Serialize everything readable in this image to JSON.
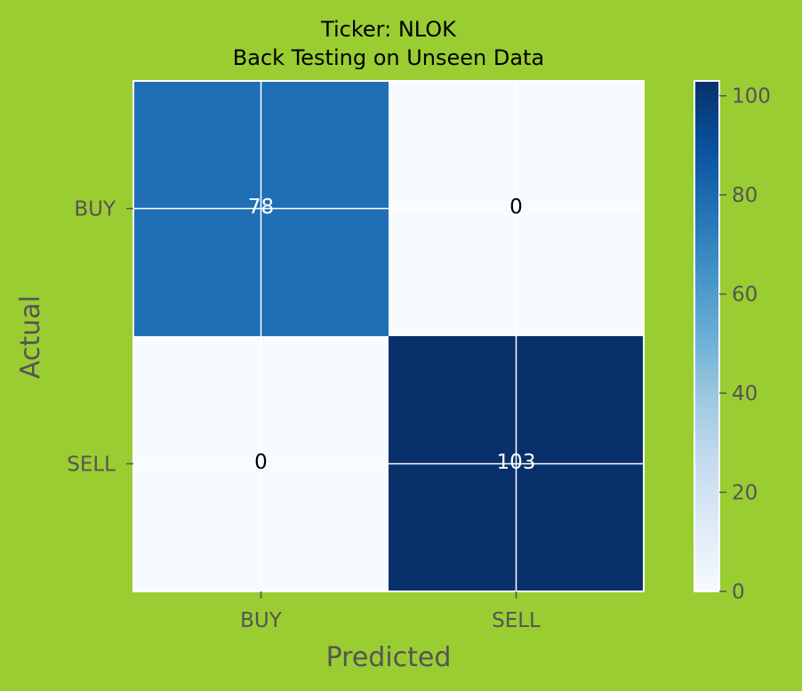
{
  "chart_data": {
    "type": "heatmap",
    "title": "Ticker: NLOK",
    "subtitle": "Back Testing on Unseen Data",
    "xlabel": "Predicted",
    "ylabel": "Actual",
    "x_categories": [
      "BUY",
      "SELL"
    ],
    "y_categories": [
      "BUY",
      "SELL"
    ],
    "values": [
      [
        78,
        0
      ],
      [
        0,
        103
      ]
    ],
    "colormap": "Blues",
    "colorbar": {
      "min": 0,
      "max": 103,
      "ticks": [
        0,
        20,
        40,
        60,
        80,
        100
      ]
    },
    "grid": true
  },
  "colors": {
    "background": "#9ACD32",
    "text_dark": "#000000",
    "text_light": "#ffffff",
    "tick_text": "#555555",
    "grid": "#ffffff"
  }
}
